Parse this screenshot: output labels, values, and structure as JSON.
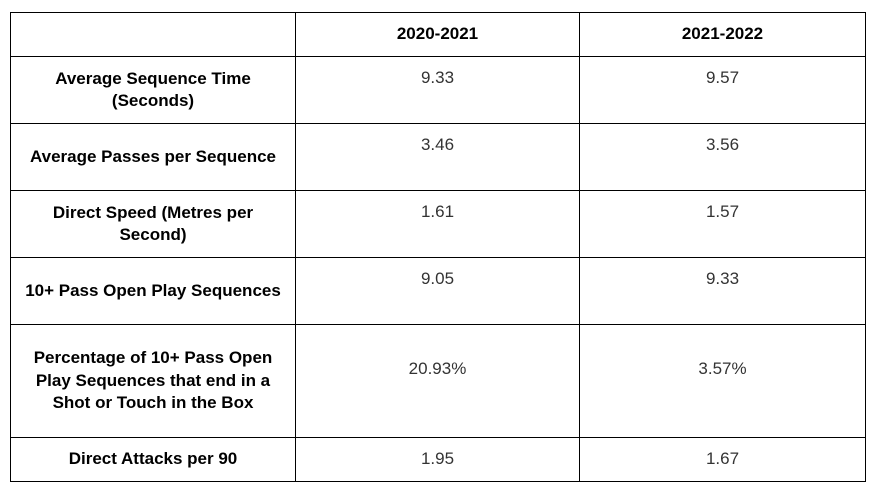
{
  "table": {
    "columns": [
      "2020-2021",
      "2021-2022"
    ],
    "rows": [
      {
        "label": "Average Sequence Time (Seconds)",
        "values": [
          "9.33",
          "9.57"
        ]
      },
      {
        "label": "Average Passes per Sequence",
        "values": [
          "3.46",
          "3.56"
        ]
      },
      {
        "label": "Direct Speed (Metres per Second)",
        "values": [
          "1.61",
          "1.57"
        ]
      },
      {
        "label": "10+ Pass Open Play Sequences",
        "values": [
          "9.05",
          "9.33"
        ]
      },
      {
        "label": "Percentage of 10+ Pass Open Play Sequences that end in a Shot or Touch in the Box",
        "values": [
          "20.93%",
          "3.57%"
        ]
      },
      {
        "label": "Direct Attacks per 90",
        "values": [
          "1.95",
          "1.67"
        ]
      }
    ]
  }
}
